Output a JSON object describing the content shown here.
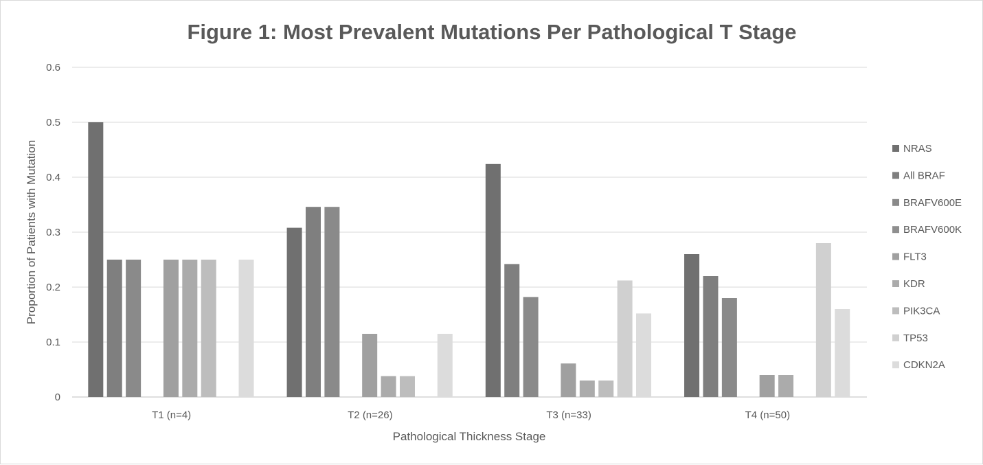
{
  "chart_data": {
    "type": "bar",
    "title": "Figure 1:  Most Prevalent Mutations Per Pathological T Stage",
    "xlabel": "Pathological Thickness Stage",
    "ylabel": "Proportion of Patients with Mutation",
    "ylim": [
      0,
      0.6
    ],
    "yticks": [
      "0",
      "0.1",
      "0.2",
      "0.3",
      "0.4",
      "0.5",
      "0.6"
    ],
    "grid": true,
    "legend_position": "right",
    "categories": [
      "T1 (n=4)",
      "T2 (n=26)",
      "T3 (n=33)",
      "T4 (n=50)"
    ],
    "series": [
      {
        "name": "NRAS",
        "color": "#707070",
        "values": [
          0.5,
          0.308,
          0.424,
          0.26
        ]
      },
      {
        "name": "All BRAF",
        "color": "#7f7f7f",
        "values": [
          0.25,
          0.346,
          0.242,
          0.22
        ]
      },
      {
        "name": "BRAFV600E",
        "color": "#8a8a8a",
        "values": [
          0.25,
          0.346,
          0.182,
          0.18
        ]
      },
      {
        "name": "BRAFV600K",
        "color": "#8f8f8f",
        "values": [
          0,
          0,
          0,
          0
        ]
      },
      {
        "name": "FLT3",
        "color": "#a0a0a0",
        "values": [
          0.25,
          0.115,
          0.061,
          0.04
        ]
      },
      {
        "name": "KDR",
        "color": "#ababab",
        "values": [
          0.25,
          0.038,
          0.03,
          0.04
        ]
      },
      {
        "name": "PIK3CA",
        "color": "#bdbdbd",
        "values": [
          0.25,
          0.038,
          0.03,
          0
        ]
      },
      {
        "name": "TP53",
        "color": "#d0d0d0",
        "values": [
          0,
          0,
          0.212,
          0.28
        ]
      },
      {
        "name": "CDKN2A",
        "color": "#dcdcdc",
        "values": [
          0.25,
          0.115,
          0.152,
          0.16
        ]
      }
    ]
  }
}
